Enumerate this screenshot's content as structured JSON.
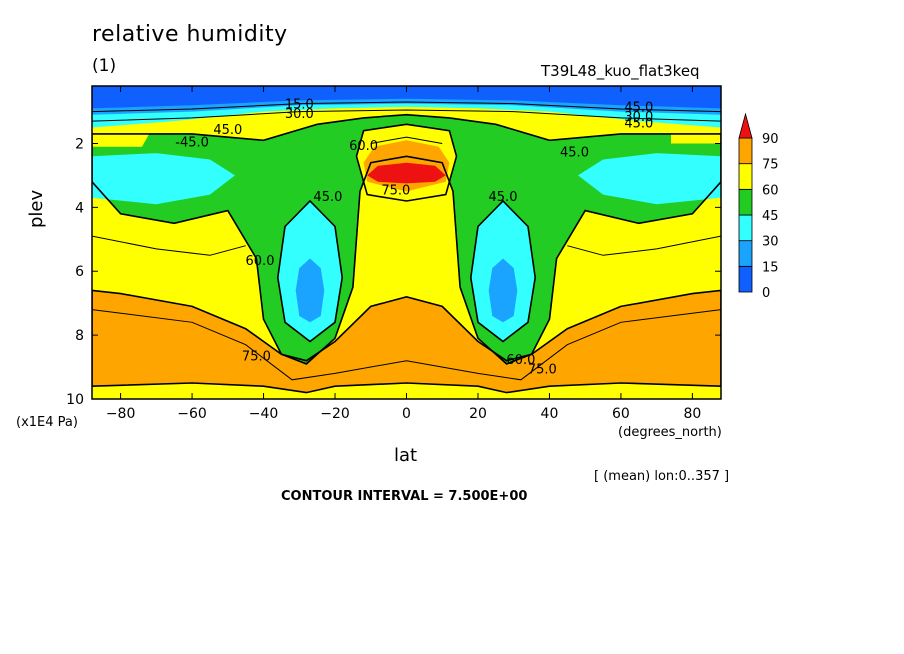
{
  "title": "relative humidity",
  "subtitle": "(1)",
  "run_name": "T39L48_kuo_flat3keq",
  "mean_note": "[ (mean) lon:0..357 ]",
  "contour_interval_text": "CONTOUR INTERVAL = 7.500E+00",
  "colors": {
    "c0_15": "#1060ff",
    "c15_30": "#1aa3ff",
    "c30_45": "#33ffff",
    "c45_60": "#22cc22",
    "c60_75": "#ffff00",
    "c75_90": "#ffa500",
    "c90": "#ee1111"
  },
  "chart_data": {
    "type": "heatmap",
    "subtype": "filled-contour",
    "variable": "relative humidity",
    "xlabel": "lat",
    "xunits": "(degrees_north)",
    "ylabel": "plev",
    "yunits": "(x1E4 Pa)",
    "xlim": [
      -88,
      88
    ],
    "ylim": [
      10,
      0.2
    ],
    "x_ticks": [
      -80,
      -60,
      -40,
      -20,
      0,
      20,
      40,
      60,
      80
    ],
    "x_tick_labels": [
      "−80",
      "−60",
      "−40",
      "−20",
      "0",
      "20",
      "40",
      "60",
      "80"
    ],
    "y_ticks": [
      2,
      4,
      6,
      8,
      10
    ],
    "y_tick_labels": [
      "2",
      "4",
      "6",
      "8",
      "10"
    ],
    "colorbar_levels": [
      0,
      15,
      30,
      45,
      60,
      75,
      90
    ],
    "colorbar_labels": [
      "0",
      "15",
      "30",
      "45",
      "60",
      "75",
      "90"
    ],
    "contour_labels": [
      {
        "text": "15.0",
        "lat": -30,
        "plev": 0.9
      },
      {
        "text": "30.0",
        "lat": -30,
        "plev": 1.2
      },
      {
        "text": "45.0",
        "lat": -50,
        "plev": 1.7
      },
      {
        "text": "-45.0",
        "lat": -60,
        "plev": 2.1
      },
      {
        "text": "60.0",
        "lat": -12,
        "plev": 2.2
      },
      {
        "text": "75.0",
        "lat": -3,
        "plev": 3.6
      },
      {
        "text": "45.0",
        "lat": -22,
        "plev": 3.8
      },
      {
        "text": "45.0",
        "lat": 27,
        "plev": 3.8
      },
      {
        "text": "45.0",
        "lat": 47,
        "plev": 2.4
      },
      {
        "text": "60.0",
        "lat": -41,
        "plev": 5.8
      },
      {
        "text": "75.0",
        "lat": -42,
        "plev": 8.8
      },
      {
        "text": "60.0",
        "lat": 32,
        "plev": 8.9
      },
      {
        "text": "75.0",
        "lat": 38,
        "plev": 9.2
      },
      {
        "text": "45.0",
        "lat": 65,
        "plev": 1.0
      },
      {
        "text": "30.0",
        "lat": 65,
        "plev": 1.3
      },
      {
        "text": "45.0",
        "lat": 65,
        "plev": 1.5
      }
    ],
    "features": [
      {
        "name": "dry stratosphere",
        "value_range": [
          0,
          15
        ],
        "plev_range": [
          0.2,
          0.9
        ]
      },
      {
        "name": "subtropical minimum (south)",
        "lat": -27,
        "plev": 6.5,
        "value_range": [
          15,
          30
        ]
      },
      {
        "name": "subtropical minimum (north)",
        "lat": 27,
        "plev": 6.5,
        "value_range": [
          15,
          30
        ]
      },
      {
        "name": "equatorial maximum",
        "lat": 0,
        "plev": 3.0,
        "value_range": [
          90,
          100
        ]
      },
      {
        "name": "boundary layer",
        "value_range": [
          75,
          90
        ],
        "plev_range": [
          7,
          10
        ]
      }
    ]
  }
}
